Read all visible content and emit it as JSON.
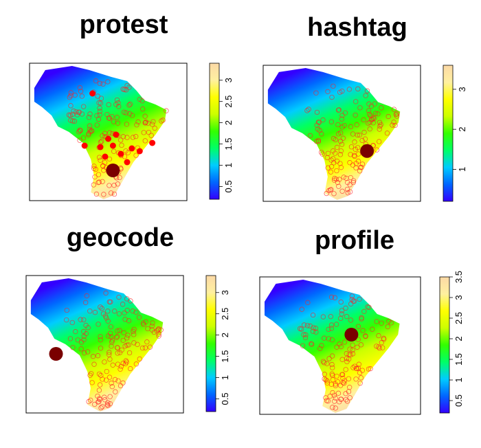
{
  "chart_data": [
    {
      "type": "heatmap",
      "title": "protest",
      "colorbar": {
        "min": 0.2,
        "max": 3.4,
        "ticks": [
          "0.5",
          "1",
          "1.5",
          "2",
          "2.5",
          "3"
        ]
      },
      "colormap": [
        "#3300ff",
        "#0066ff",
        "#00ccff",
        "#00ff66",
        "#33ff00",
        "#ccff00",
        "#ffff00",
        "#fff0a0",
        "#fbd9a6"
      ],
      "gradient_direction": "northwest-low to southeast-high",
      "highlight_marker": {
        "color": "#7a0000",
        "location": "south-central",
        "size": "large"
      },
      "points": {
        "color": "#ff0000",
        "style": "open circles with several filled circles",
        "concentration": "southeast"
      }
    },
    {
      "type": "heatmap",
      "title": "hashtag",
      "colorbar": {
        "min": 0.2,
        "max": 3.6,
        "ticks": [
          "1",
          "2",
          "3"
        ]
      },
      "colormap": [
        "#3300ff",
        "#0066ff",
        "#00ccff",
        "#00ff66",
        "#33ff00",
        "#ccff00",
        "#ffff00",
        "#fff0a0",
        "#fbd9a6"
      ],
      "gradient_direction": "northwest-low to southeast-high",
      "highlight_marker": {
        "color": "#7a0000",
        "location": "east-central",
        "size": "large"
      },
      "points": {
        "color": "#ff0000",
        "style": "open circles",
        "concentration": "southeast"
      }
    },
    {
      "type": "heatmap",
      "title": "geocode",
      "colorbar": {
        "min": 0.2,
        "max": 3.4,
        "ticks": [
          "0.5",
          "1",
          "1.5",
          "2",
          "2.5",
          "3"
        ]
      },
      "colormap": [
        "#3300ff",
        "#0066ff",
        "#00ccff",
        "#00ff66",
        "#33ff00",
        "#ccff00",
        "#ffff00",
        "#fff0a0",
        "#fbd9a6"
      ],
      "gradient_direction": "northwest-low to southeast-high",
      "highlight_marker": {
        "color": "#7a0000",
        "location": "west, outside region",
        "size": "large"
      },
      "points": {
        "color": "#ff0000",
        "style": "open circles",
        "concentration": "southeast"
      }
    },
    {
      "type": "heatmap",
      "title": "profile",
      "colorbar": {
        "min": 0.2,
        "max": 3.5,
        "ticks": [
          "0.5",
          "1",
          "1.5",
          "2",
          "2.5",
          "3",
          "3.5"
        ]
      },
      "colormap": [
        "#3300ff",
        "#0066ff",
        "#00ccff",
        "#00ff66",
        "#33ff00",
        "#ccff00",
        "#ffff00",
        "#fff0a0",
        "#fbd9a6"
      ],
      "gradient_direction": "northwest-low to southeast-high",
      "highlight_marker": {
        "color": "#7a0000",
        "location": "center",
        "size": "large"
      },
      "points": {
        "color": "#ff0000",
        "style": "open circles",
        "concentration": "southeast"
      }
    }
  ]
}
